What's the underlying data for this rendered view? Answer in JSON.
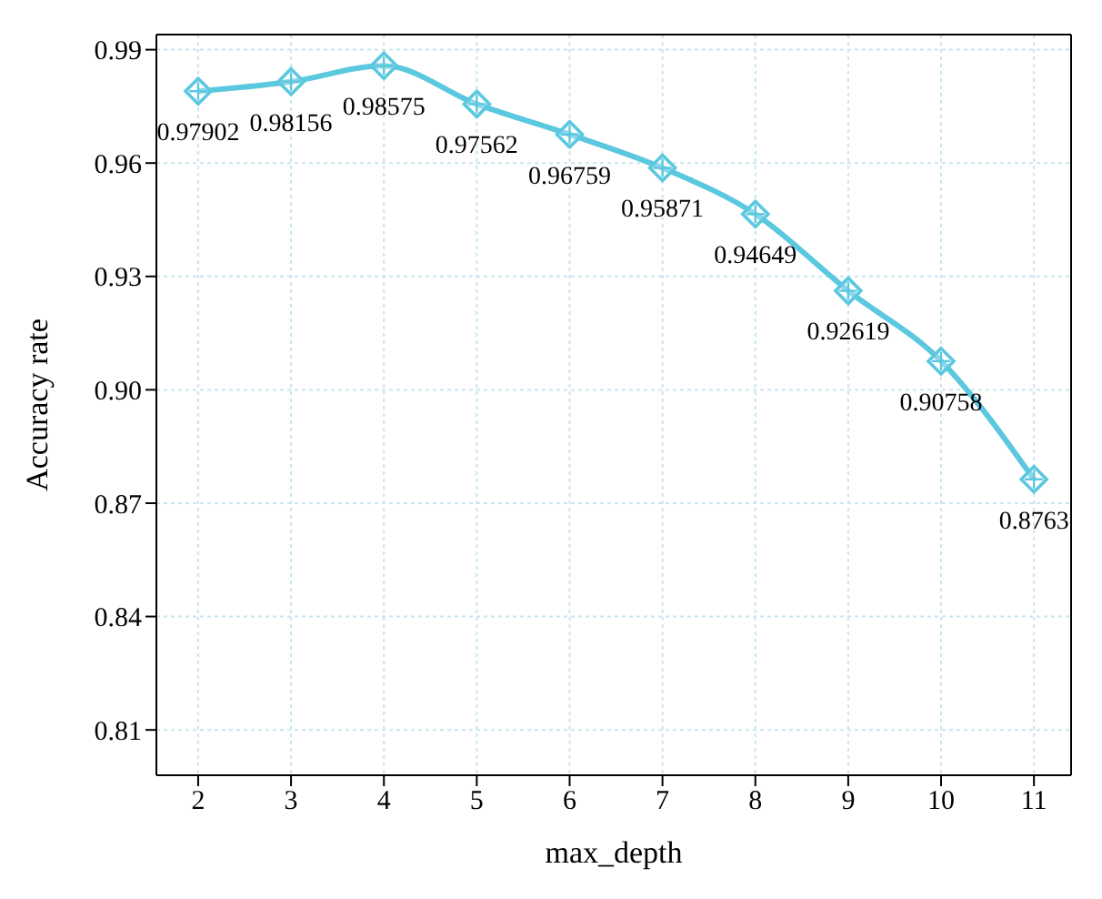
{
  "chart_data": {
    "type": "line",
    "xlabel": "max_depth",
    "ylabel": "Accuracy rate",
    "x": [
      2,
      3,
      4,
      5,
      6,
      7,
      8,
      9,
      10,
      11
    ],
    "series": [
      {
        "color": "#5bc8e0",
        "values": [
          0.97902,
          0.98156,
          0.98575,
          0.97562,
          0.96759,
          0.95871,
          0.94649,
          0.92619,
          0.90758,
          0.8763
        ]
      }
    ],
    "xlim": [
      1.55,
      11.4
    ],
    "xticks": [
      2,
      3,
      4,
      5,
      6,
      7,
      8,
      9,
      10,
      11
    ],
    "ylim": [
      0.798,
      0.994
    ],
    "yticks": [
      0.81,
      0.84,
      0.87,
      {
        "value": 0.9,
        "label": "0.90"
      },
      0.93,
      0.96,
      0.99
    ],
    "grid": true,
    "marker": "diamond",
    "line_style": "solid",
    "data_labels": true,
    "legend": false
  }
}
